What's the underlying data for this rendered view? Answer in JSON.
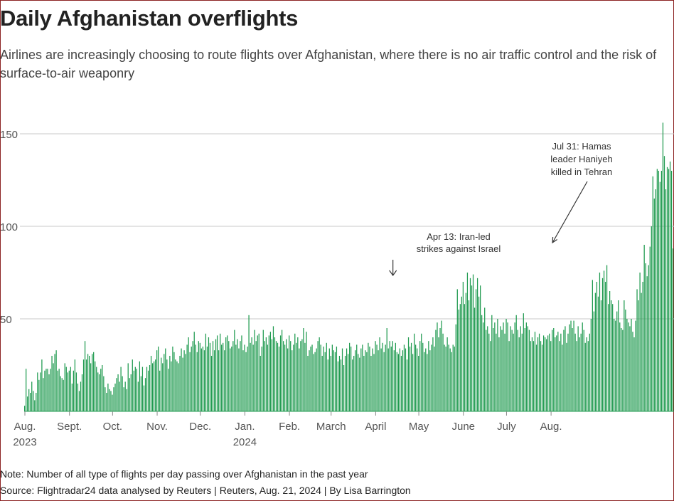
{
  "title": "Daily Afghanistan overflights",
  "subtitle": "Airlines are increasingly choosing to route flights over Afghanistan, where there is no air traffic control and the risk of surface-to-air weaponry",
  "note": "Note: Number of all type of flights per day passing over Afghanistan in the past year",
  "source": "Source: Flightradar24 data analysed by Reuters | Reuters, Aug. 21, 2024 | By Lisa Barrington",
  "colors": {
    "bar": "#1f9a4f",
    "grid": "#c8c8c8",
    "axis_text": "#555555",
    "annotation": "#333333"
  },
  "chart_data": {
    "type": "bar",
    "x_start": "2023-08-01",
    "ylim": [
      0,
      160
    ],
    "y_ticks": [
      50,
      100,
      150
    ],
    "x_ticks": [
      {
        "line1": "Aug.",
        "line2": "2023"
      },
      {
        "line1": "Sept.",
        "line2": ""
      },
      {
        "line1": "Oct.",
        "line2": ""
      },
      {
        "line1": "Nov.",
        "line2": ""
      },
      {
        "line1": "Dec.",
        "line2": ""
      },
      {
        "line1": "Jan.",
        "line2": "2024"
      },
      {
        "line1": "Feb.",
        "line2": ""
      },
      {
        "line1": "March",
        "line2": ""
      },
      {
        "line1": "April",
        "line2": ""
      },
      {
        "line1": "May",
        "line2": ""
      },
      {
        "line1": "June",
        "line2": ""
      },
      {
        "line1": "July",
        "line2": ""
      },
      {
        "line1": "Aug.",
        "line2": ""
      }
    ],
    "annotations": [
      {
        "lines": [
          "Apr 13: Iran-led",
          "strikes against Israel"
        ],
        "date": "2024-04-13"
      },
      {
        "lines": [
          "Jul 31: Hamas",
          "leader Haniyeh",
          "killed in Tehran"
        ],
        "date": "2024-07-31"
      }
    ],
    "values": [
      3,
      23,
      8,
      12,
      10,
      16,
      11,
      6,
      10,
      21,
      17,
      21,
      28,
      18,
      22,
      23,
      23,
      20,
      23,
      30,
      26,
      31,
      33,
      22,
      23,
      19,
      18,
      17,
      26,
      24,
      21,
      22,
      24,
      15,
      22,
      28,
      21,
      15,
      11,
      16,
      20,
      28,
      38,
      28,
      31,
      30,
      26,
      31,
      32,
      27,
      24,
      21,
      20,
      23,
      25,
      19,
      13,
      10,
      15,
      12,
      11,
      9,
      13,
      15,
      18,
      20,
      16,
      24,
      19,
      13,
      16,
      12,
      26,
      18,
      20,
      28,
      22,
      24,
      23,
      16,
      27,
      19,
      24,
      14,
      18,
      24,
      22,
      25,
      30,
      26,
      27,
      28,
      33,
      35,
      22,
      29,
      26,
      31,
      34,
      28,
      23,
      30,
      27,
      35,
      32,
      28,
      27,
      26,
      30,
      34,
      29,
      33,
      31,
      36,
      40,
      32,
      35,
      38,
      43,
      36,
      32,
      38,
      37,
      34,
      35,
      33,
      42,
      35,
      40,
      37,
      30,
      38,
      33,
      39,
      41,
      33,
      42,
      36,
      37,
      33,
      40,
      41,
      38,
      34,
      35,
      38,
      44,
      36,
      39,
      34,
      38,
      41,
      33,
      36,
      32,
      35,
      52,
      37,
      40,
      36,
      44,
      38,
      41,
      42,
      30,
      35,
      44,
      38,
      40,
      36,
      41,
      43,
      39,
      46,
      40,
      38,
      37,
      35,
      41,
      44,
      38,
      36,
      39,
      34,
      41,
      38,
      33,
      36,
      42,
      37,
      40,
      34,
      38,
      39,
      45,
      37,
      43,
      30,
      33,
      35,
      36,
      31,
      32,
      34,
      38,
      40,
      36,
      30,
      35,
      32,
      37,
      28,
      34,
      30,
      36,
      33,
      32,
      35,
      27,
      30,
      28,
      34,
      25,
      30,
      34,
      31,
      37,
      35,
      28,
      30,
      33,
      36,
      31,
      29,
      34,
      36,
      30,
      33,
      32,
      37,
      35,
      30,
      34,
      31,
      38,
      36,
      33,
      40,
      34,
      37,
      32,
      36,
      45,
      34,
      38,
      35,
      38,
      33,
      37,
      32,
      31,
      34,
      30,
      33,
      36,
      34,
      28,
      40,
      35,
      37,
      31,
      42,
      36,
      34,
      30,
      38,
      42,
      37,
      32,
      34,
      31,
      38,
      33,
      36,
      40,
      35,
      44,
      48,
      40,
      45,
      49,
      42,
      36,
      35,
      40,
      36,
      34,
      32,
      36,
      35,
      47,
      66,
      55,
      58,
      62,
      70,
      58,
      64,
      75,
      60,
      72,
      68,
      74,
      56,
      66,
      72,
      62,
      68,
      52,
      48,
      56,
      44,
      46,
      42,
      38,
      52,
      45,
      48,
      42,
      50,
      40,
      46,
      44,
      48,
      42,
      50,
      48,
      38,
      46,
      44,
      42,
      48,
      52,
      44,
      40,
      46,
      42,
      53,
      45,
      48,
      46,
      44,
      38,
      40,
      38,
      43,
      36,
      40,
      42,
      38,
      36,
      41,
      40,
      39,
      41,
      42,
      38,
      44,
      45,
      40,
      41,
      43,
      38,
      42,
      36,
      44,
      46,
      37,
      42,
      47,
      49,
      45,
      49,
      42,
      38,
      46,
      40,
      42,
      48,
      44,
      37,
      40,
      38,
      42,
      50,
      71,
      54,
      64,
      70,
      62,
      75,
      60,
      72,
      76,
      70,
      79,
      58,
      65,
      60,
      58,
      50,
      49,
      54,
      60,
      48,
      45,
      44,
      60,
      55,
      50,
      48,
      46,
      50,
      43,
      40,
      49,
      66,
      60,
      75,
      64,
      70,
      90,
      80,
      73,
      79,
      89,
      100,
      127,
      115,
      120,
      131,
      130,
      124,
      130,
      156,
      138,
      120,
      132,
      131,
      135,
      130,
      88
    ]
  }
}
